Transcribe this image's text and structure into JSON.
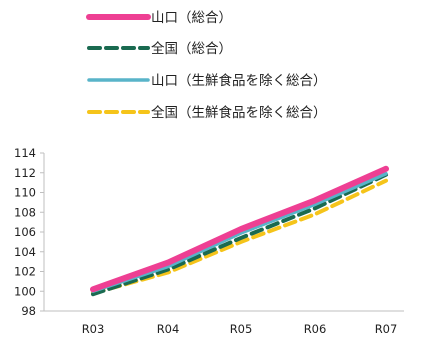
{
  "chart_data": {
    "type": "line",
    "title": "",
    "xlabel": "",
    "ylabel": "",
    "categories": [
      "R03",
      "R04",
      "R05",
      "R06",
      "R07"
    ],
    "ylim": [
      98,
      114
    ],
    "yticks": [
      98,
      100,
      102,
      104,
      106,
      108,
      110,
      112,
      114
    ],
    "grid": false,
    "legend_position": "top",
    "series": [
      {
        "name": "山口（総合）",
        "color": "#ee3f93",
        "style": "solid-thick",
        "values": [
          100.2,
          102.9,
          106.3,
          109.2,
          112.4
        ]
      },
      {
        "name": "全国（総合）",
        "color": "#1a6a50",
        "style": "dashed",
        "values": [
          99.7,
          102.2,
          105.4,
          108.4,
          111.8
        ]
      },
      {
        "name": "山口（生鮮食品を除く総合）",
        "color": "#58b4c9",
        "style": "solid",
        "values": [
          100.0,
          102.5,
          105.9,
          108.8,
          111.9
        ]
      },
      {
        "name": "全国（生鮮食品を除く総合）",
        "color": "#f5c41a",
        "style": "dashed",
        "values": [
          99.8,
          101.9,
          105.0,
          107.8,
          111.2
        ]
      }
    ]
  }
}
